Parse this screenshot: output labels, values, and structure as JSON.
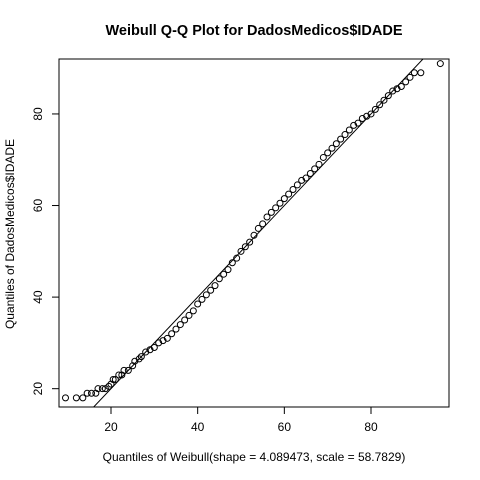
{
  "chart_data": {
    "type": "scatter",
    "title": "Weibull Q-Q Plot for DadosMedicos$IDADE",
    "xlabel": "Quantiles of Weibull(shape = 4.089473, scale = 58.7829)",
    "ylabel": "Quantiles of DadosMedicos$IDADE",
    "xlim": [
      8,
      98
    ],
    "ylim": [
      16,
      92
    ],
    "xticks": [
      20,
      40,
      60,
      80
    ],
    "yticks": [
      20,
      40,
      60,
      80
    ],
    "grid": false,
    "reference_line": {
      "intercept": 0,
      "slope": 1
    },
    "points": [
      [
        9.5,
        18
      ],
      [
        12,
        18
      ],
      [
        13.5,
        18
      ],
      [
        14.5,
        19
      ],
      [
        15.5,
        19
      ],
      [
        16.5,
        19
      ],
      [
        17,
        20
      ],
      [
        18,
        20
      ],
      [
        18.7,
        20
      ],
      [
        19.5,
        20.5
      ],
      [
        20,
        21
      ],
      [
        20.5,
        22
      ],
      [
        21,
        22
      ],
      [
        21.8,
        23
      ],
      [
        22.5,
        23
      ],
      [
        23,
        24
      ],
      [
        24,
        24
      ],
      [
        25,
        25
      ],
      [
        25.5,
        26
      ],
      [
        26.5,
        26.5
      ],
      [
        27,
        27
      ],
      [
        28,
        28
      ],
      [
        29,
        28.5
      ],
      [
        30,
        29
      ],
      [
        31,
        30
      ],
      [
        32,
        30.5
      ],
      [
        33,
        31
      ],
      [
        34,
        32
      ],
      [
        35,
        33
      ],
      [
        36,
        34
      ],
      [
        37,
        35
      ],
      [
        38,
        36
      ],
      [
        39,
        37
      ],
      [
        40,
        38.5
      ],
      [
        41,
        39.5
      ],
      [
        42,
        40.5
      ],
      [
        43,
        41.5
      ],
      [
        44,
        42.5
      ],
      [
        45,
        44
      ],
      [
        46,
        45
      ],
      [
        47,
        46
      ],
      [
        48,
        47.5
      ],
      [
        49,
        48.5
      ],
      [
        50,
        50
      ],
      [
        51,
        51
      ],
      [
        52,
        52
      ],
      [
        53,
        53.5
      ],
      [
        54,
        55
      ],
      [
        55,
        56
      ],
      [
        56,
        57.5
      ],
      [
        57,
        58.5
      ],
      [
        58,
        59.5
      ],
      [
        59,
        60.5
      ],
      [
        60,
        61.5
      ],
      [
        61,
        62.5
      ],
      [
        62,
        63.5
      ],
      [
        63,
        64.5
      ],
      [
        64,
        65.5
      ],
      [
        65,
        66
      ],
      [
        66,
        67
      ],
      [
        67,
        68
      ],
      [
        68,
        69
      ],
      [
        69,
        70.5
      ],
      [
        70,
        71.5
      ],
      [
        71,
        72.5
      ],
      [
        72,
        73.5
      ],
      [
        73,
        74.5
      ],
      [
        74,
        75.5
      ],
      [
        75,
        76.5
      ],
      [
        76,
        77.5
      ],
      [
        77,
        78
      ],
      [
        78,
        79
      ],
      [
        79,
        79.5
      ],
      [
        80,
        80
      ],
      [
        81,
        81
      ],
      [
        82,
        82
      ],
      [
        83,
        83
      ],
      [
        84,
        84
      ],
      [
        85,
        85
      ],
      [
        86,
        85.5
      ],
      [
        87,
        86
      ],
      [
        88,
        87
      ],
      [
        89,
        88
      ],
      [
        90,
        89
      ],
      [
        91.5,
        89
      ],
      [
        96,
        91
      ]
    ]
  }
}
